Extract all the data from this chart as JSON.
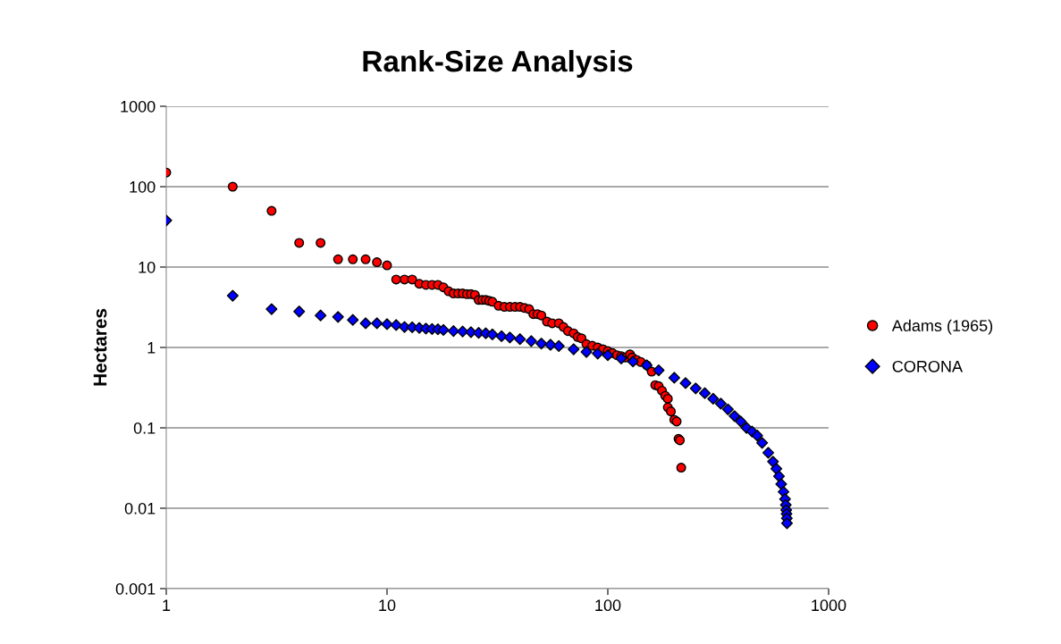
{
  "chart_data": {
    "type": "scatter",
    "title": "Rank-Size Analysis",
    "ylabel": "Hectares",
    "log": "xy",
    "xlim": [
      1,
      1000
    ],
    "xticks": [
      1,
      10,
      100,
      1000
    ],
    "ylim": [
      0.001,
      1000
    ],
    "yticks": [
      0.001,
      0.01,
      0.1,
      1,
      10,
      100,
      1000
    ],
    "grid": "y",
    "legend": "right",
    "series": [
      {
        "name": "Adams (1965)",
        "color": "#ff0000",
        "marker": "circle",
        "x": [
          1,
          2,
          3,
          4,
          5,
          6,
          7,
          8,
          9,
          10,
          11,
          12,
          13,
          14,
          15,
          16,
          17,
          18,
          19,
          20,
          21,
          22,
          23,
          24,
          25,
          26,
          27,
          28,
          29,
          30,
          32,
          34,
          36,
          38,
          40,
          42,
          44,
          46,
          48,
          50,
          53,
          56,
          60,
          63,
          66,
          70,
          73,
          76,
          80,
          85,
          90,
          95,
          100,
          105,
          110,
          115,
          120,
          126,
          129,
          135,
          141,
          150,
          158,
          164,
          170,
          176,
          182,
          187,
          187,
          193,
          200,
          205,
          209,
          212,
          215
        ],
        "values": [
          150,
          100,
          50,
          20,
          20,
          12.5,
          12.5,
          12.5,
          11.5,
          10.5,
          7,
          7,
          7,
          6.2,
          6,
          6,
          6,
          5.6,
          5,
          4.7,
          4.7,
          4.7,
          4.6,
          4.6,
          4.5,
          3.9,
          3.9,
          3.9,
          3.8,
          3.7,
          3.3,
          3.2,
          3.2,
          3.2,
          3.2,
          3.1,
          3.0,
          2.6,
          2.6,
          2.5,
          2.1,
          2.0,
          2.0,
          1.8,
          1.6,
          1.5,
          1.35,
          1.3,
          1.1,
          1.05,
          1.0,
          0.95,
          0.9,
          0.85,
          0.8,
          0.78,
          0.75,
          0.82,
          0.75,
          0.7,
          0.66,
          0.6,
          0.5,
          0.34,
          0.33,
          0.29,
          0.25,
          0.23,
          0.18,
          0.16,
          0.126,
          0.12,
          0.073,
          0.07,
          0.032
        ]
      },
      {
        "name": "CORONA",
        "color": "#0000ff",
        "marker": "diamond",
        "x": [
          1,
          2,
          3,
          4,
          5,
          6,
          7,
          8,
          9,
          10,
          11,
          12,
          13,
          14,
          15,
          16,
          17,
          18,
          20,
          22,
          24,
          26,
          28,
          30,
          33,
          36,
          40,
          45,
          50,
          55,
          60,
          70,
          80,
          90,
          100,
          115,
          130,
          150,
          170,
          200,
          225,
          250,
          275,
          300,
          325,
          350,
          375,
          400,
          425,
          450,
          475,
          500,
          533,
          560,
          580,
          596,
          610,
          625,
          635,
          640,
          643,
          645,
          647,
          648
        ],
        "values": [
          38,
          4.4,
          3.0,
          2.8,
          2.5,
          2.4,
          2.2,
          2.0,
          2.0,
          1.95,
          1.9,
          1.8,
          1.78,
          1.75,
          1.72,
          1.7,
          1.68,
          1.65,
          1.6,
          1.58,
          1.55,
          1.52,
          1.5,
          1.45,
          1.38,
          1.33,
          1.27,
          1.2,
          1.12,
          1.08,
          1.04,
          0.95,
          0.88,
          0.84,
          0.8,
          0.73,
          0.67,
          0.6,
          0.52,
          0.42,
          0.36,
          0.31,
          0.27,
          0.23,
          0.2,
          0.17,
          0.14,
          0.12,
          0.1,
          0.09,
          0.08,
          0.065,
          0.049,
          0.038,
          0.031,
          0.025,
          0.02,
          0.016,
          0.013,
          0.011,
          0.0095,
          0.0085,
          0.0075,
          0.0065
        ]
      }
    ]
  }
}
